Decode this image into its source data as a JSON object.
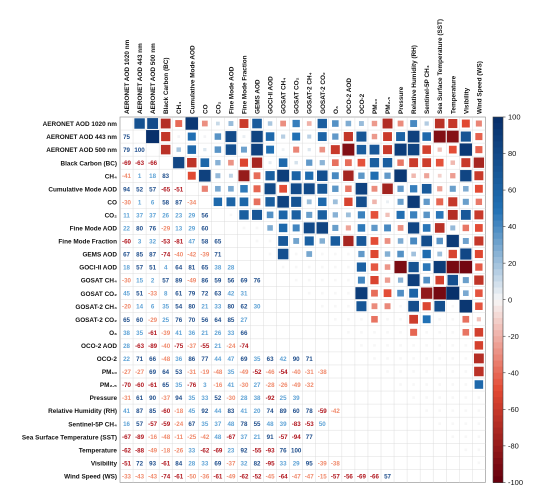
{
  "chart_data": {
    "type": "heatmap",
    "title": "",
    "variables": [
      "AERONET AOD 1020 nm",
      "AERONET AOD 443 nm",
      "AERONET AOD 500 nm",
      "Black Carbon (BC)",
      "CH₄",
      "Cumulative Mode AOD",
      "CO",
      "CO₂",
      "Fine Mode AOD",
      "Fine Mode Fraction",
      "GEMS AOD",
      "GOCI-II AOD",
      "GOSAT CH₄",
      "GOSAT CO₂",
      "GOSAT-2 CH₄",
      "GOSAT-2 CO₂",
      "O₃",
      "OCO-2 AOD",
      "OCO-2",
      "PM₁₀",
      "PM₂.₅",
      "Pressure",
      "Relative Humidity (RH)",
      "Sentinel-5P CH₄",
      "Sea Surface Temperature (SST)",
      "Temperature",
      "Visibility",
      "Wind Speed (WS)"
    ],
    "lower_values": [
      [],
      [
        75
      ],
      [
        79,
        100
      ],
      [
        -69,
        -63,
        -66
      ],
      [
        -41,
        1,
        18,
        83
      ],
      [
        94,
        52,
        57,
        -65,
        -51
      ],
      [
        -30,
        1,
        6,
        58,
        87,
        -34
      ],
      [
        11,
        37,
        37,
        26,
        23,
        29,
        56
      ],
      [
        22,
        80,
        76,
        -29,
        13,
        29,
        60
      ],
      [
        -60,
        3,
        32,
        -53,
        -81,
        47,
        58,
        65
      ],
      [
        67,
        85,
        87,
        -74,
        -40,
        -42,
        -39,
        71
      ],
      [
        18,
        57,
        51,
        4,
        64,
        81,
        65,
        38,
        28
      ],
      [
        -30,
        15,
        2,
        57,
        89,
        -49,
        86,
        59,
        56,
        69,
        76
      ],
      [
        45,
        51,
        -33,
        8,
        61,
        79,
        72,
        63,
        42,
        31
      ],
      [
        -20,
        14,
        6,
        35,
        54,
        80,
        21,
        33,
        80,
        62,
        30
      ],
      [
        65,
        60,
        -29,
        25,
        76,
        70,
        56,
        64,
        85,
        27
      ],
      [
        38,
        35,
        -61,
        -39,
        41,
        36,
        21,
        26,
        33,
        66
      ],
      [
        28,
        -63,
        -89,
        -40,
        -75,
        -37,
        -55,
        21,
        -24,
        -74
      ],
      [
        22,
        71,
        66,
        -48,
        36,
        86,
        77,
        44,
        47,
        69,
        35,
        63,
        42,
        90,
        71
      ],
      [
        -27,
        -27,
        69,
        64,
        53,
        -31,
        -19,
        -48,
        35,
        -49,
        -52,
        -46,
        -54,
        -40,
        -31,
        -38
      ],
      [
        -70,
        -60,
        -61,
        65,
        35,
        -76,
        3,
        -16,
        41,
        -30,
        27,
        -28,
        -26,
        -49,
        -32
      ],
      [
        -31,
        61,
        90,
        -37,
        94,
        35,
        33,
        52,
        -30,
        28,
        38,
        -92,
        25,
        39
      ],
      [
        41,
        87,
        85,
        -60,
        -18,
        45,
        92,
        44,
        83,
        41,
        20,
        74,
        89,
        60,
        78,
        -59,
        -42
      ],
      [
        16,
        57,
        -57,
        -59,
        -24,
        67,
        35,
        37,
        48,
        78,
        55,
        48,
        39,
        -83,
        -53,
        50
      ],
      [
        -67,
        -89,
        -16,
        -48,
        -11,
        -25,
        -42,
        48,
        -67,
        37,
        21,
        91,
        -57,
        -94,
        77
      ],
      [
        -62,
        -88,
        -49,
        -18,
        -26,
        33,
        -62,
        -69,
        23,
        92,
        -55,
        -93,
        76,
        100
      ],
      [
        -51,
        72,
        93,
        -61,
        84,
        28,
        33,
        69,
        -37,
        32,
        82,
        -95,
        33,
        29,
        95,
        -39,
        -38
      ],
      [
        -33,
        -43,
        -43,
        -74,
        -61,
        -50,
        -36,
        -61,
        -49,
        -62,
        -52,
        -45,
        -64,
        -47,
        -47,
        -15,
        -57,
        -56,
        -69,
        -66,
        57
      ]
    ],
    "upper_values_shown_as": "squares",
    "colorbar": {
      "min": -100,
      "max": 100,
      "ticks": [
        100,
        80,
        60,
        40,
        20,
        0,
        -20,
        -40,
        -60,
        -80,
        -100
      ]
    },
    "colors": {
      "positive_dark": "#08306b",
      "positive_mid": "#2171b5",
      "neutral": "#f7f7f7",
      "negative_mid": "#e34a33",
      "negative_dark": "#67000d"
    }
  }
}
